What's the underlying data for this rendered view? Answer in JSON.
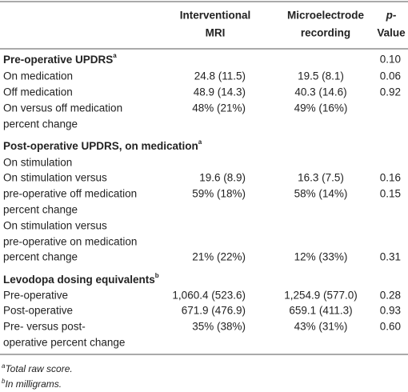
{
  "table": {
    "columns": [
      {
        "lines": [
          "Interventional",
          "MRI"
        ]
      },
      {
        "lines": [
          "Microelectrode",
          "recording"
        ]
      },
      {
        "lines": [
          "p-",
          "Value"
        ]
      }
    ],
    "rows": [
      {
        "section": "Pre-operative UPDRS",
        "sup": "a",
        "p": "0.10"
      },
      {
        "label": "On medication",
        "imri": "24.8 (11.5)",
        "mer": "19.5 (8.1)",
        "p": "0.06"
      },
      {
        "label": "Off medication",
        "imri": "48.9 (14.3)",
        "mer": "40.3 (14.6)",
        "p": "0.92"
      },
      {
        "label": "On versus off medication",
        "imri": "48% (21%)",
        "mer": "49% (16%)"
      },
      {
        "label": "percent change"
      },
      {
        "section": "Post-operative UPDRS, on medication",
        "sup": "a"
      },
      {
        "label": "On stimulation"
      },
      {
        "label": "On stimulation versus",
        "imri": "19.6 (8.9)",
        "mer": "16.3 (7.5)",
        "p": "0.16"
      },
      {
        "label": "pre-operative off medication",
        "imri": "59% (18%)",
        "mer": "58% (14%)",
        "p": "0.15"
      },
      {
        "label": "percent change"
      },
      {
        "label": "On stimulation versus"
      },
      {
        "label": "pre-operative on medication"
      },
      {
        "label": "percent change",
        "imri": "21% (22%)",
        "mer": "12% (33%)",
        "p": "0.31"
      },
      {
        "section": "Levodopa dosing equivalents",
        "sup": "b"
      },
      {
        "label": "Pre-operative",
        "imri": "1,060.4 (523.6)",
        "mer": "1,254.9 (577.0)",
        "p": "0.28"
      },
      {
        "label": "Post-operative",
        "imri": "671.9 (476.9)",
        "mer": "659.1 (411.3)",
        "p": "0.93"
      },
      {
        "label": "Pre- versus post-",
        "imri": "35% (38%)",
        "mer": "43% (31%)",
        "p": "0.60"
      },
      {
        "label": "operative percent change"
      }
    ]
  },
  "footnotes": [
    {
      "sup": "a",
      "text": "Total raw score."
    },
    {
      "sup": "b",
      "text": "In milligrams."
    }
  ]
}
